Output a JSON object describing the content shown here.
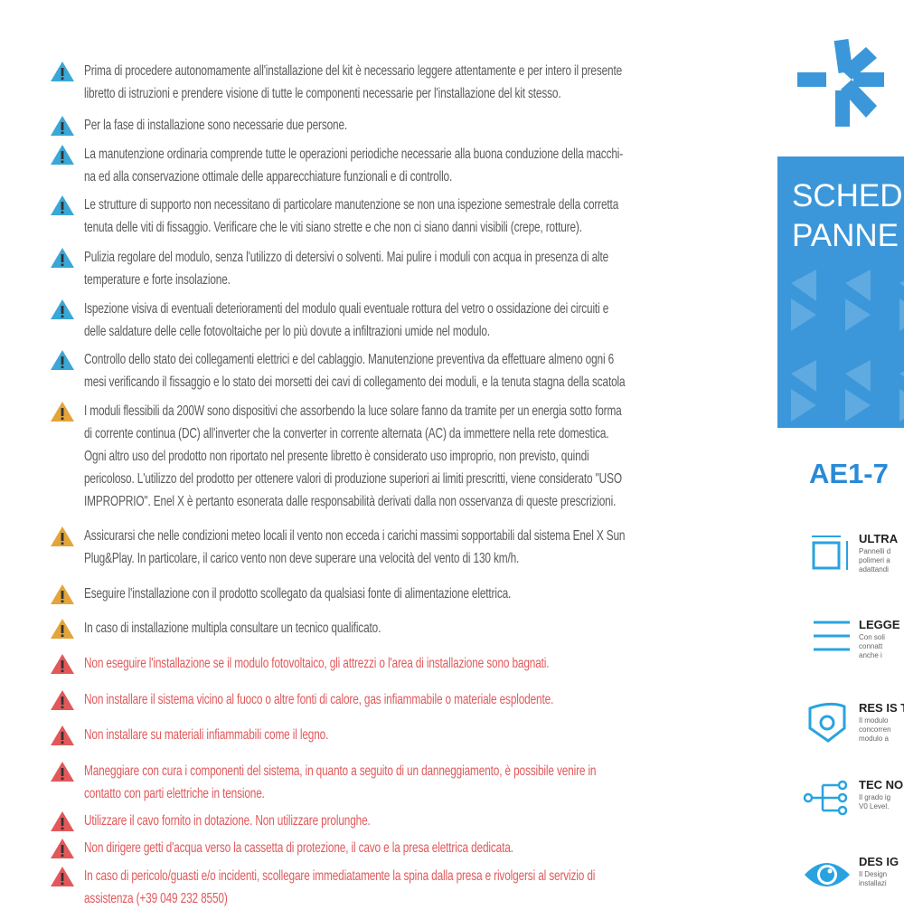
{
  "colors": {
    "info": "#3aa7d6",
    "caution": "#e3a43a",
    "danger": "#e2585a",
    "brand_blue": "#3b97d9"
  },
  "warnings": [
    {
      "level": "info",
      "lines": [
        "Prima di procedere autonomamente all'installazione del kit è necessario leggere attentamente e per intero il presente",
        "libretto di istruzioni e prendere visione di tutte le componenti necessarie per l'installazione del kit stesso."
      ]
    },
    {
      "level": "info",
      "lines": [
        "Per la fase di installazione sono necessarie due persone."
      ]
    },
    {
      "level": "info",
      "lines": [
        "La manutenzione ordinaria comprende tutte le operazioni periodiche necessarie alla buona conduzione della macchi-",
        "na ed alla conservazione ottimale delle apparecchiature funzionali e di controllo."
      ]
    },
    {
      "level": "info",
      "lines": [
        "Le strutture di supporto non necessitano di particolare manutenzione se non una ispezione semestrale della corretta",
        "tenuta delle viti di fissaggio. Verificare che le viti siano strette e che non ci siano danni visibili (crepe, rotture)."
      ]
    },
    {
      "level": "info",
      "lines": [
        "Pulizia regolare del modulo, senza l'utilizzo di detersivi o solventi. Mai pulire i moduli con acqua in presenza di alte",
        "temperature e forte insolazione."
      ]
    },
    {
      "level": "info",
      "lines": [
        "Ispezione visiva di eventuali deterioramenti del modulo quali eventuale rottura del vetro o ossidazione dei circuiti e",
        "delle saldature delle celle fotovoltaiche per lo più dovute a infiltrazioni umide nel modulo."
      ]
    },
    {
      "level": "info",
      "lines": [
        "Controllo dello stato dei collegamenti elettrici e del cablaggio. Manutenzione preventiva da effettuare almeno ogni 6",
        "mesi verificando il fissaggio e lo stato dei morsetti dei cavi di collegamento dei moduli, e la tenuta stagna della scatola"
      ]
    },
    {
      "level": "caution",
      "lines": [
        "I moduli flessibili da 200W sono dispositivi che assorbendo la luce solare fanno da tramite per un energia sotto forma",
        "di corrente continua (DC) all'inverter che la converter in corrente alternata (AC) da immettere nella rete domestica.",
        "Ogni altro uso del prodotto non riportato nel presente libretto è considerato uso improprio, non previsto, quindi",
        "pericoloso. L'utilizzo del prodotto per ottenere valori di produzione superiori ai limiti prescritti, viene considerato  \"USO",
        "IMPROPRIO\". Enel X è pertanto esonerata dalle responsabilità derivati dalla non osservanza di queste prescrizioni."
      ]
    },
    {
      "level": "caution",
      "lines": [
        "Assicurarsi che nelle condizioni meteo locali il vento non ecceda i carichi massimi sopportabili dal sistema Enel X Sun",
        "Plug&Play. In particolare, il carico vento non deve superare una velocità del vento di 130 km/h."
      ]
    },
    {
      "level": "caution",
      "lines": [
        "Eseguire l'installazione con il prodotto scollegato da qualsiasi fonte di alimentazione elettrica."
      ]
    },
    {
      "level": "caution",
      "lines": [
        "In caso di installazione multipla consultare un tecnico qualificato."
      ]
    },
    {
      "level": "danger",
      "lines": [
        "Non eseguire l'installazione se il modulo fotovoltaico, gli attrezzi o l'area di installazione sono bagnati."
      ]
    },
    {
      "level": "danger",
      "lines": [
        "Non installare il sistema vicino al fuoco o altre fonti di calore, gas infiammabile o materiale esplodente."
      ]
    },
    {
      "level": "danger",
      "lines": [
        "Non installare su materiali infiammabili come il legno."
      ]
    },
    {
      "level": "danger",
      "lines": [
        "Maneggiare con cura i componenti del sistema, in quanto a seguito di un danneggiamento, è possibile venire in",
        "contatto con parti elettriche in tensione."
      ]
    },
    {
      "level": "danger",
      "lines": [
        "Utilizzare il cavo fornito in dotazione. Non utilizzare prolunghe."
      ]
    },
    {
      "level": "danger",
      "lines": [
        "Non dirigere getti d'acqua verso la cassetta di protezione, il cavo e la presa elettrica dedicata."
      ]
    },
    {
      "level": "danger",
      "lines": [
        "In caso di pericolo/guasti e/o incidenti, scollegare immediatamente la spina dalla presa e rivolgersi al servizio di",
        "assistenza (+39 049 232 8550)"
      ]
    }
  ],
  "sidebar": {
    "title_lines": [
      "SCHED",
      "PANNE"
    ],
    "model": "AE1-7",
    "features": [
      {
        "icon": "dimensions-icon",
        "title": "ULTRA",
        "desc": [
          "Pannelli d",
          "polimeri a",
          "adattandi"
        ]
      },
      {
        "icon": "layers-icon",
        "title": "LEGGE",
        "desc": [
          "Con soli",
          "connatt",
          "anche i"
        ]
      },
      {
        "icon": "shield-icon",
        "title": "RES IS T",
        "desc": [
          "Il modulo",
          "concorren",
          "modulo a"
        ]
      },
      {
        "icon": "network-icon",
        "title": "TEC NO",
        "desc": [
          "Il grado ig",
          "V0 Level."
        ]
      },
      {
        "icon": "eye-icon",
        "title": "DES IG",
        "desc": [
          "Il Design",
          "installazi"
        ]
      }
    ]
  }
}
